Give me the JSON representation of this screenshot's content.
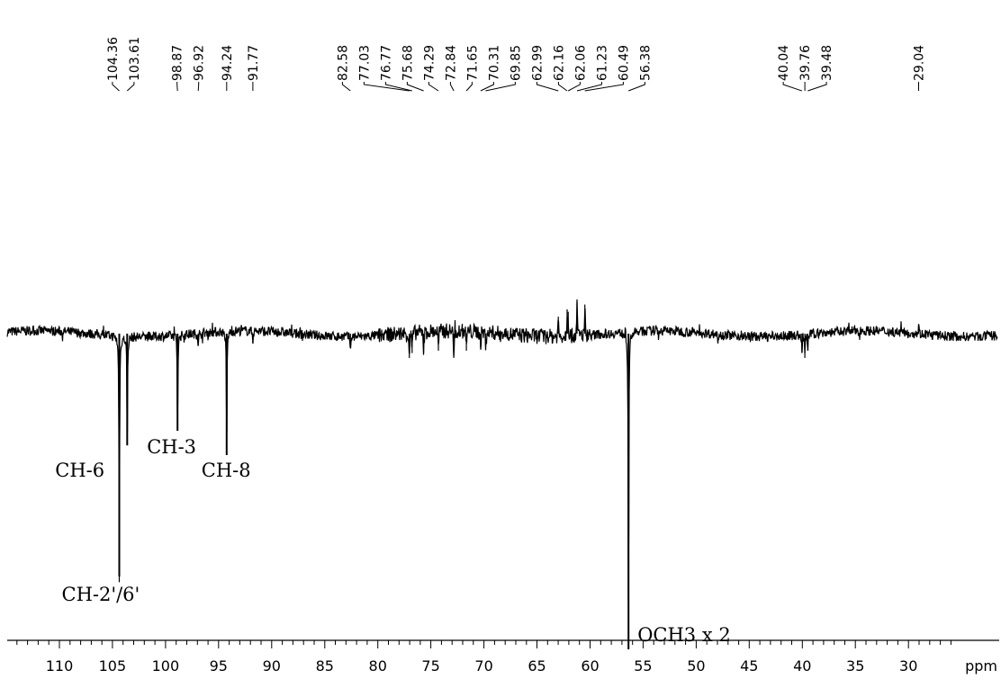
{
  "chart_data": {
    "type": "line",
    "title": "",
    "xlabel": "ppm",
    "ylabel": "",
    "xlim": [
      115,
      26
    ],
    "x_reversed": true,
    "grid": false,
    "x_major_ticks": [
      110,
      105,
      100,
      95,
      90,
      85,
      80,
      75,
      70,
      65,
      60,
      55,
      50,
      45,
      40,
      35,
      30
    ],
    "x_minor_step": 1,
    "peak_labels": [
      "104.36",
      "103.61",
      "98.87",
      "96.92",
      "94.24",
      "91.77",
      "82.58",
      "77.03",
      "76.77",
      "75.68",
      "74.29",
      "72.84",
      "71.65",
      "70.31",
      "69.85",
      "62.99",
      "62.16",
      "62.06",
      "61.23",
      "60.49",
      "56.38",
      "40.04",
      "39.76",
      "39.48",
      "29.04"
    ],
    "signals": [
      {
        "ppm": 104.36,
        "intensity": -1.0
      },
      {
        "ppm": 103.61,
        "intensity": -0.46
      },
      {
        "ppm": 98.87,
        "intensity": -0.4
      },
      {
        "ppm": 96.92,
        "intensity": -0.05
      },
      {
        "ppm": 94.24,
        "intensity": -0.5
      },
      {
        "ppm": 91.77,
        "intensity": -0.04
      },
      {
        "ppm": 82.58,
        "intensity": -0.05
      },
      {
        "ppm": 77.03,
        "intensity": -0.1
      },
      {
        "ppm": 76.77,
        "intensity": -0.08
      },
      {
        "ppm": 75.68,
        "intensity": -0.08
      },
      {
        "ppm": 74.29,
        "intensity": -0.07
      },
      {
        "ppm": 72.84,
        "intensity": -0.1
      },
      {
        "ppm": 71.65,
        "intensity": -0.07
      },
      {
        "ppm": 70.31,
        "intensity": -0.06
      },
      {
        "ppm": 69.85,
        "intensity": -0.05
      },
      {
        "ppm": 62.99,
        "intensity": 0.07
      },
      {
        "ppm": 62.16,
        "intensity": 0.1
      },
      {
        "ppm": 62.06,
        "intensity": 0.09
      },
      {
        "ppm": 61.23,
        "intensity": 0.13
      },
      {
        "ppm": 60.49,
        "intensity": 0.12
      },
      {
        "ppm": 56.38,
        "intensity": -1.3
      },
      {
        "ppm": 40.04,
        "intensity": -0.08
      },
      {
        "ppm": 39.76,
        "intensity": -0.1
      },
      {
        "ppm": 39.48,
        "intensity": -0.07
      },
      {
        "ppm": 29.04,
        "intensity": 0.04
      }
    ],
    "annotations": [
      {
        "text": "CH-2'/6'",
        "ppm": 104.36
      },
      {
        "text": "CH-6",
        "ppm": 103.61
      },
      {
        "text": "CH-3",
        "ppm": 98.87
      },
      {
        "text": "CH-8",
        "ppm": 94.24
      },
      {
        "text": "OCH3 x 2",
        "ppm": 56.38
      }
    ]
  }
}
